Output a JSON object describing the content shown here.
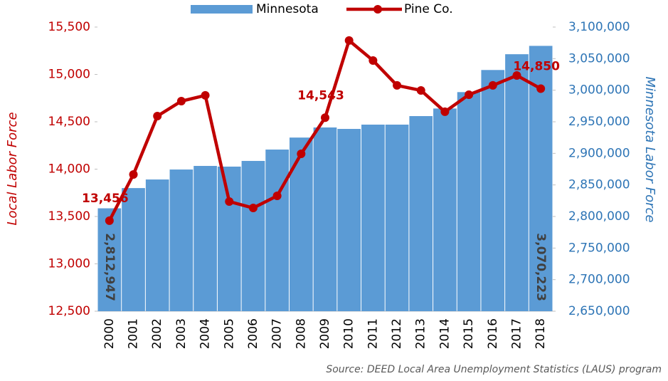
{
  "chart_data": {
    "type": "bar",
    "categories": [
      "2000",
      "2001",
      "2002",
      "2003",
      "2004",
      "2005",
      "2006",
      "2007",
      "2008",
      "2009",
      "2010",
      "2011",
      "2012",
      "2013",
      "2014",
      "2015",
      "2016",
      "2017",
      "2018"
    ],
    "series": [
      {
        "name": "Minnesota",
        "type": "bar",
        "axis": "y2",
        "color": "#5b9bd5",
        "values": [
          2812947,
          2845000,
          2858600,
          2874400,
          2880100,
          2879000,
          2888000,
          2906000,
          2925000,
          2941000,
          2938700,
          2945500,
          2945500,
          2959000,
          2971000,
          2997000,
          3032000,
          3057000,
          3070223
        ],
        "value_labels": [
          "2,812,947",
          null,
          null,
          null,
          null,
          null,
          null,
          null,
          null,
          null,
          null,
          null,
          null,
          null,
          null,
          null,
          null,
          null,
          "3,070,223"
        ]
      },
      {
        "name": "Pine Co.",
        "type": "line",
        "axis": "y",
        "color": "#c00000",
        "values": [
          13456,
          13944,
          14560,
          14718,
          14779,
          13658,
          13590,
          13718,
          14162,
          14543,
          15358,
          15147,
          14884,
          14831,
          14606,
          14786,
          14884,
          14989,
          14850
        ],
        "value_labels": [
          "13,456",
          null,
          null,
          null,
          null,
          null,
          null,
          null,
          null,
          "14,543",
          null,
          null,
          null,
          null,
          null,
          null,
          null,
          null,
          "14,850"
        ]
      }
    ],
    "ylabel": "Local Labor Force",
    "y2label": "Minnesota Labor Force",
    "ylim": [
      12500,
      15500
    ],
    "yticks": [
      {
        "value": 12500,
        "label": "12,500"
      },
      {
        "value": 13000,
        "label": "13,000"
      },
      {
        "value": 13500,
        "label": "13,500"
      },
      {
        "value": 14000,
        "label": "14,000"
      },
      {
        "value": 14500,
        "label": "14,500"
      },
      {
        "value": 15000,
        "label": "15,000"
      },
      {
        "value": 15500,
        "label": "15,500"
      }
    ],
    "y2lim": [
      2650000,
      3100000
    ],
    "y2ticks": [
      {
        "value": 2650000,
        "label": "2,650,000"
      },
      {
        "value": 2700000,
        "label": "2,700,000"
      },
      {
        "value": 2750000,
        "label": "2,750,000"
      },
      {
        "value": 2800000,
        "label": "2,800,000"
      },
      {
        "value": 2850000,
        "label": "2,850,000"
      },
      {
        "value": 2900000,
        "label": "2,900,000"
      },
      {
        "value": 2950000,
        "label": "2,950,000"
      },
      {
        "value": 3000000,
        "label": "3,000,000"
      },
      {
        "value": 3050000,
        "label": "3,050,000"
      },
      {
        "value": 3100000,
        "label": "3,100,000"
      }
    ],
    "legend": "top",
    "source": "Source: DEED Local Area Unemployment Statistics (LAUS) program"
  }
}
